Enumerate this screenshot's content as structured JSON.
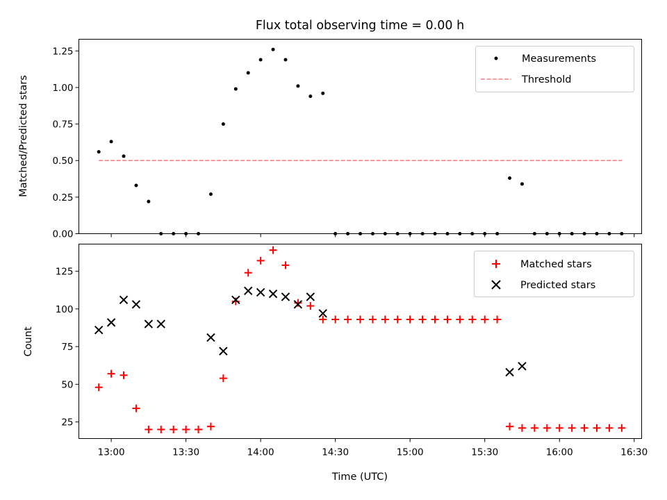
{
  "chart_data": [
    {
      "type": "scatter",
      "title": "Flux total observing time = 0.00 h",
      "xlabel": "",
      "ylabel": "Matched/Predicted stars",
      "xlim": [
        "12:47",
        "16:33"
      ],
      "ylim": [
        0,
        1.33
      ],
      "yticks": [
        0.0,
        0.25,
        0.5,
        0.75,
        1.0,
        1.25
      ],
      "ytick_labels": [
        "0.00",
        "0.25",
        "0.50",
        "0.75",
        "1.00",
        "1.25"
      ],
      "grid": false,
      "legend": "top-right",
      "series": [
        {
          "name": "Measurements",
          "marker": "dot",
          "color": "#000000",
          "x": [
            "12:55",
            "13:00",
            "13:05",
            "13:10",
            "13:15",
            "13:20",
            "13:25",
            "13:30",
            "13:35",
            "13:40",
            "13:45",
            "13:50",
            "13:55",
            "14:00",
            "14:05",
            "14:10",
            "14:15",
            "14:20",
            "14:25",
            "14:30",
            "14:35",
            "14:40",
            "14:45",
            "14:50",
            "14:55",
            "15:00",
            "15:05",
            "15:10",
            "15:15",
            "15:20",
            "15:25",
            "15:30",
            "15:35",
            "15:40",
            "15:45",
            "15:50",
            "15:55",
            "16:00",
            "16:05",
            "16:10",
            "16:15",
            "16:20",
            "16:25"
          ],
          "y": [
            0.56,
            0.63,
            0.53,
            0.33,
            0.22,
            0.0,
            0.0,
            0.0,
            0.0,
            0.27,
            0.75,
            0.99,
            1.1,
            1.19,
            1.26,
            1.19,
            1.01,
            0.94,
            0.96,
            0.0,
            0.0,
            0.0,
            0.0,
            0.0,
            0.0,
            0.0,
            0.0,
            0.0,
            0.0,
            0.0,
            0.0,
            0.0,
            0.0,
            0.38,
            0.34,
            0.0,
            0.0,
            0.0,
            0.0,
            0.0,
            0.0,
            0.0,
            0.0
          ]
        },
        {
          "name": "Threshold",
          "style": "dashed",
          "color": "#ff7f7f",
          "x": [
            "12:55",
            "16:25"
          ],
          "y": [
            0.5,
            0.5
          ]
        }
      ]
    },
    {
      "type": "scatter",
      "title": "",
      "xlabel": "Time (UTC)",
      "ylabel": "Count",
      "xlim": [
        "12:47",
        "16:33"
      ],
      "ylim": [
        14,
        143
      ],
      "xticks": [
        "13:00",
        "13:30",
        "14:00",
        "14:30",
        "15:00",
        "15:30",
        "16:00",
        "16:30"
      ],
      "yticks": [
        25,
        50,
        75,
        100,
        125
      ],
      "ytick_labels": [
        "25",
        "50",
        "75",
        "100",
        "125"
      ],
      "grid": false,
      "legend": "top-right",
      "series": [
        {
          "name": "Matched stars",
          "marker": "plus",
          "color": "#ff0000",
          "x": [
            "12:55",
            "13:00",
            "13:05",
            "13:10",
            "13:15",
            "13:20",
            "13:25",
            "13:30",
            "13:35",
            "13:40",
            "13:45",
            "13:50",
            "13:55",
            "14:00",
            "14:05",
            "14:10",
            "14:15",
            "14:20",
            "14:25",
            "14:30",
            "14:35",
            "14:40",
            "14:45",
            "14:50",
            "14:55",
            "15:00",
            "15:05",
            "15:10",
            "15:15",
            "15:20",
            "15:25",
            "15:30",
            "15:35",
            "15:40",
            "15:45",
            "15:50",
            "15:55",
            "16:00",
            "16:05",
            "16:10",
            "16:15",
            "16:20",
            "16:25"
          ],
          "y": [
            48,
            57,
            56,
            34,
            20,
            20,
            20,
            20,
            20,
            22,
            54,
            105,
            124,
            132,
            139,
            129,
            104,
            102,
            93,
            93,
            93,
            93,
            93,
            93,
            93,
            93,
            93,
            93,
            93,
            93,
            93,
            93,
            93,
            22,
            21,
            21,
            21,
            21,
            21,
            21,
            21,
            21,
            21
          ]
        },
        {
          "name": "Predicted stars",
          "marker": "x",
          "color": "#000000",
          "x": [
            "12:55",
            "13:00",
            "13:05",
            "13:10",
            "13:15",
            "13:20",
            "13:40",
            "13:45",
            "13:50",
            "13:55",
            "14:00",
            "14:05",
            "14:10",
            "14:15",
            "14:20",
            "14:25",
            "15:40",
            "15:45"
          ],
          "y": [
            86,
            91,
            106,
            103,
            90,
            90,
            81,
            72,
            106,
            112,
            111,
            110,
            108,
            103,
            108,
            97,
            58,
            62
          ]
        }
      ]
    }
  ]
}
